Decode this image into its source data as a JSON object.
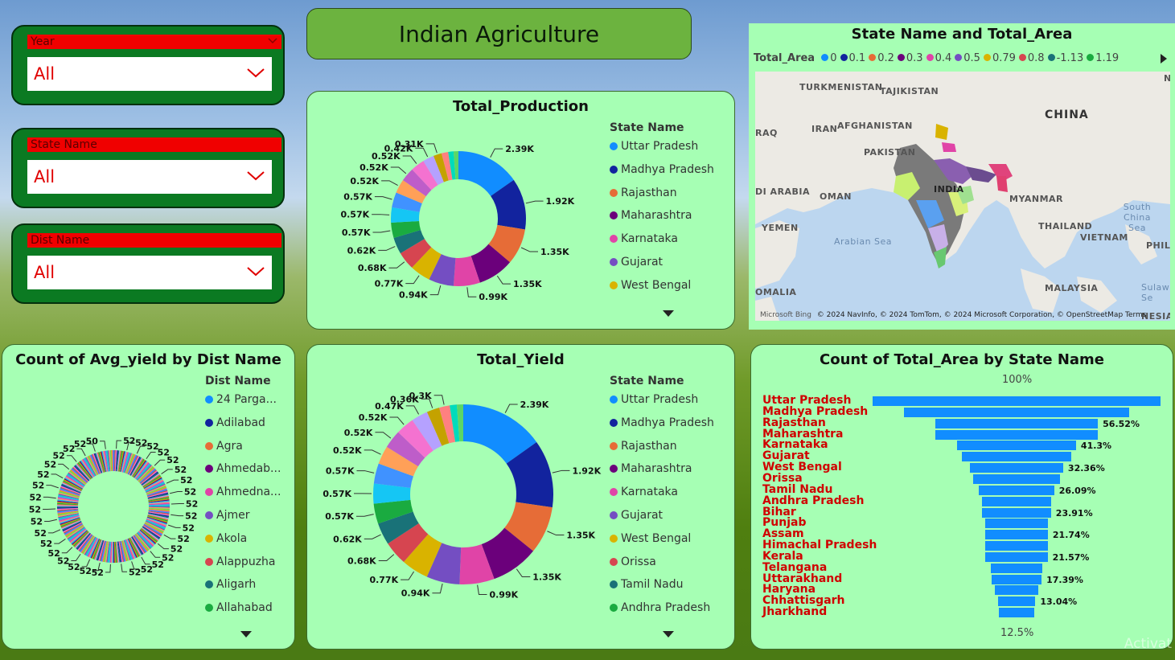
{
  "title": "Indian Agriculture",
  "slicers": [
    {
      "label": "Year",
      "value": "All"
    },
    {
      "label": "State Name",
      "value": "All"
    },
    {
      "label": "Dist Name",
      "value": "All"
    }
  ],
  "colors": [
    "#118dff",
    "#12239e",
    "#e66c37",
    "#6b007b",
    "#e044a7",
    "#744ec2",
    "#d9b300",
    "#d64550",
    "#197278",
    "#1aab40",
    "#15c6f4",
    "#4092ff",
    "#ffa058",
    "#be5dc9",
    "#f472d0",
    "#b5a1ff",
    "#c4a200",
    "#ff8080",
    "#00dbbc",
    "#5bd667"
  ],
  "total_production": {
    "title": "Total_Production",
    "legend_title": "State Name",
    "legend": [
      {
        "name": "Uttar Pradesh",
        "color": "#118dff"
      },
      {
        "name": "Madhya Pradesh",
        "color": "#12239e"
      },
      {
        "name": "Rajasthan",
        "color": "#e66c37"
      },
      {
        "name": "Maharashtra",
        "color": "#6b007b"
      },
      {
        "name": "Karnataka",
        "color": "#e044a7"
      },
      {
        "name": "Gujarat",
        "color": "#744ec2"
      },
      {
        "name": "West Bengal",
        "color": "#d9b300"
      }
    ]
  },
  "total_yield": {
    "title": "Total_Yield",
    "legend_title": "State Name",
    "legend": [
      {
        "name": "Uttar Pradesh",
        "color": "#118dff"
      },
      {
        "name": "Madhya Pradesh",
        "color": "#12239e"
      },
      {
        "name": "Rajasthan",
        "color": "#e66c37"
      },
      {
        "name": "Maharashtra",
        "color": "#6b007b"
      },
      {
        "name": "Karnataka",
        "color": "#e044a7"
      },
      {
        "name": "Gujarat",
        "color": "#744ec2"
      },
      {
        "name": "West Bengal",
        "color": "#d9b300"
      },
      {
        "name": "Orissa",
        "color": "#d64550"
      },
      {
        "name": "Tamil Nadu",
        "color": "#197278"
      },
      {
        "name": "Andhra Pradesh",
        "color": "#1aab40"
      }
    ]
  },
  "avg_yield": {
    "title": "Count of Avg_yield by Dist Name",
    "legend_title": "Dist Name",
    "legend": [
      {
        "name": "24 Parga...",
        "color": "#118dff"
      },
      {
        "name": "Adilabad",
        "color": "#12239e"
      },
      {
        "name": "Agra",
        "color": "#e66c37"
      },
      {
        "name": "Ahmedab...",
        "color": "#6b007b"
      },
      {
        "name": "Ahmedna...",
        "color": "#e044a7"
      },
      {
        "name": "Ajmer",
        "color": "#744ec2"
      },
      {
        "name": "Akola",
        "color": "#d9b300"
      },
      {
        "name": "Alappuzha",
        "color": "#d64550"
      },
      {
        "name": "Aligarh",
        "color": "#197278"
      },
      {
        "name": "Allahabad",
        "color": "#1aab40"
      }
    ]
  },
  "map": {
    "title": "State Name and Total_Area",
    "legend_title": "Total_Area",
    "legend": [
      {
        "name": "0",
        "color": "#118dff"
      },
      {
        "name": "0.1",
        "color": "#12239e"
      },
      {
        "name": "0.2",
        "color": "#e66c37"
      },
      {
        "name": "0.3",
        "color": "#6b007b"
      },
      {
        "name": "0.4",
        "color": "#e044a7"
      },
      {
        "name": "0.5",
        "color": "#744ec2"
      },
      {
        "name": "0.79",
        "color": "#d9b300"
      },
      {
        "name": "0.8",
        "color": "#d64550"
      },
      {
        "name": "-1.13",
        "color": "#197278"
      },
      {
        "name": "1.19",
        "color": "#1aab40"
      }
    ],
    "labels": [
      "TURKMENISTAN",
      "TAJIKISTAN",
      "CHINA",
      "IRAN",
      "AFGHANISTAN",
      "RAQ",
      "PAKISTAN",
      "DI ARABIA",
      "OMAN",
      "INDIA",
      "MYANMAR",
      "South China Sea",
      "YEMEN",
      "Arabian Sea",
      "THAILAND",
      "VIETNAM",
      "PHILI",
      "OMALIA",
      "MALAYSIA",
      "Sulaw Se",
      "NESIA",
      "N"
    ],
    "attribution": "© 2024 NavInfo, © 2024 TomTom, © 2024 Microsoft Corporation, © OpenStreetMap  Terms",
    "bing": "Microsoft Bing"
  },
  "funnel": {
    "title": "Count of Total_Area by State Name",
    "top_label": "100%",
    "bottom_label": "12.5%",
    "states": [
      "Uttar Pradesh",
      "Madhya Pradesh",
      "Rajasthan",
      "Maharashtra",
      "Karnataka",
      "Gujarat",
      "West Bengal",
      "Orissa",
      "Tamil Nadu",
      "Andhra Pradesh",
      "Bihar",
      "Punjab",
      "Assam",
      "Himachal Pradesh",
      "Kerala",
      "Telangana",
      "Uttarakhand",
      "Haryana",
      "Chhattisgarh",
      "Jharkhand"
    ],
    "value_labels": [
      "",
      "",
      "56.52%",
      "",
      "41.3%",
      "",
      "32.36%",
      "",
      "26.09%",
      "",
      "23.91%",
      "",
      "21.74%",
      "",
      "21.57%",
      "",
      "17.39%",
      "",
      "13.04%",
      ""
    ]
  },
  "watermark": "Activat",
  "chart_data": [
    {
      "type": "pie",
      "title": "Total_Production",
      "categories": [
        "Uttar Pradesh",
        "Madhya Pradesh",
        "Rajasthan",
        "Maharashtra",
        "Karnataka",
        "Gujarat",
        "West Bengal",
        "Orissa",
        "Tamil Nadu",
        "Andhra Pradesh",
        "Bihar",
        "Punjab",
        "Assam",
        "Himachal Pradesh",
        "Kerala",
        "Telangana",
        "Uttarakhand",
        "Haryana",
        "Chhattisgarh",
        "Jharkhand"
      ],
      "values": [
        2390,
        1920,
        1350,
        1350,
        990,
        940,
        770,
        680,
        620,
        570,
        570,
        570,
        520,
        520,
        520,
        420,
        310,
        250,
        200,
        180
      ],
      "value_labels": [
        "2.39K",
        "1.92K",
        "1.35K",
        "1.35K",
        "0.99K",
        "0.94K",
        "0.77K",
        "0.68K",
        "0.62K",
        "0.57K",
        "0.57K",
        "0.57K",
        "0.52K",
        "0.52K",
        "0.52K",
        "0.42K",
        "0.31K",
        "",
        "",
        ""
      ],
      "legend": "right"
    },
    {
      "type": "pie",
      "title": "Total_Yield",
      "categories": [
        "Uttar Pradesh",
        "Madhya Pradesh",
        "Rajasthan",
        "Maharashtra",
        "Karnataka",
        "Gujarat",
        "West Bengal",
        "Orissa",
        "Tamil Nadu",
        "Andhra Pradesh",
        "Bihar",
        "Punjab",
        "Assam",
        "Himachal Pradesh",
        "Kerala",
        "Telangana",
        "Uttarakhand",
        "Haryana",
        "Chhattisgarh",
        "Jharkhand"
      ],
      "values": [
        2390,
        1920,
        1350,
        1350,
        990,
        940,
        770,
        680,
        620,
        570,
        570,
        570,
        520,
        520,
        520,
        470,
        360,
        300,
        200,
        180
      ],
      "value_labels": [
        "2.39K",
        "1.92K",
        "1.35K",
        "1.35K",
        "0.99K",
        "0.94K",
        "0.77K",
        "0.68K",
        "0.62K",
        "0.57K",
        "0.57K",
        "0.57K",
        "0.52K",
        "0.52K",
        "0.52K",
        "0.47K",
        "0.36K",
        "0.3K",
        "",
        ""
      ],
      "legend": "right"
    },
    {
      "type": "pie",
      "title": "Count of Avg_yield by Dist Name",
      "slice_count": 300,
      "slice_value": 52,
      "value_labels": [
        "50",
        "52"
      ],
      "legend": "right"
    },
    {
      "type": "bar",
      "title": "Count of Total_Area by State Name",
      "categories": [
        "Uttar Pradesh",
        "Madhya Pradesh",
        "Rajasthan",
        "Maharashtra",
        "Karnataka",
        "Gujarat",
        "West Bengal",
        "Orissa",
        "Tamil Nadu",
        "Andhra Pradesh",
        "Bihar",
        "Punjab",
        "Assam",
        "Himachal Pradesh",
        "Kerala",
        "Telangana",
        "Uttarakhand",
        "Haryana",
        "Chhattisgarh",
        "Jharkhand"
      ],
      "values": [
        100,
        78,
        56.52,
        56.52,
        41.3,
        38,
        32.36,
        30,
        26.09,
        24,
        23.91,
        22,
        21.74,
        21.6,
        21.57,
        18,
        17.39,
        15,
        13.04,
        12.5
      ]
    }
  ]
}
